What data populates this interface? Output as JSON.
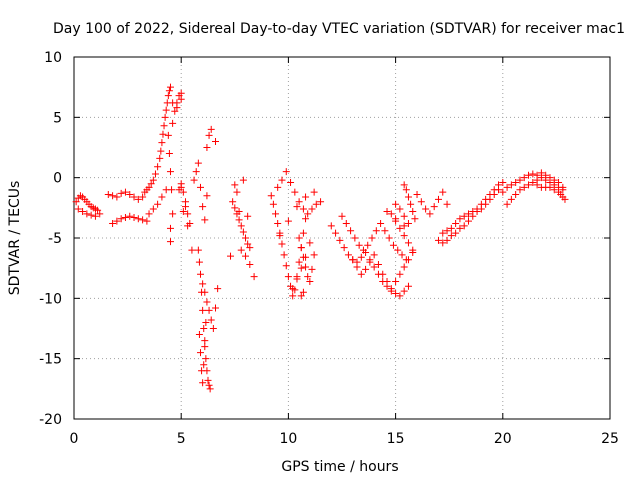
{
  "chart_data": {
    "type": "scatter",
    "title": "Day 100 of 2022, Sidereal Day-to-day VTEC variation (SDTVAR) for receiver mac1",
    "xlabel": "GPS time / hours",
    "ylabel": "SDTVAR / TECUs",
    "xlim": [
      0,
      25
    ],
    "ylim": [
      -20,
      10
    ],
    "xticks": [
      "0",
      "5",
      "10",
      "15",
      "20",
      "25"
    ],
    "yticks": [
      "10",
      "5",
      "0",
      "-5",
      "-10",
      "-15",
      "-20"
    ],
    "grid": true,
    "marker": "plus",
    "color": "#ff0000",
    "series": [
      {
        "name": "SDTVAR mac1",
        "x": [
          0.1,
          0.2,
          0.3,
          0.4,
          0.5,
          0.6,
          0.7,
          0.8,
          0.9,
          1.0,
          1.1,
          0.2,
          0.4,
          0.6,
          0.8,
          1.0,
          1.2,
          1.6,
          1.8,
          2.0,
          2.2,
          2.4,
          2.6,
          2.8,
          3.0,
          3.2,
          1.8,
          2.0,
          2.2,
          2.4,
          2.6,
          2.8,
          3.0,
          3.2,
          3.4,
          3.3,
          3.4,
          3.5,
          3.6,
          3.7,
          3.8,
          3.9,
          4.0,
          4.05,
          4.1,
          4.15,
          4.2,
          4.25,
          4.3,
          4.35,
          4.4,
          4.45,
          4.5,
          3.5,
          3.7,
          3.9,
          4.1,
          4.3,
          4.6,
          4.7,
          4.8,
          4.9,
          5.0,
          4.6,
          4.8,
          5.0,
          4.4,
          4.45,
          4.5,
          4.55,
          4.6,
          4.5,
          4.5,
          5.0,
          5.1,
          5.2,
          5.3,
          5.0,
          5.2,
          5.4,
          4.9,
          5.1,
          5.3,
          5.5,
          5.6,
          5.7,
          5.8,
          5.9,
          6.0,
          6.1,
          6.2,
          5.8,
          5.85,
          5.9,
          5.95,
          6.0,
          6.05,
          6.1,
          6.15,
          6.2,
          6.25,
          6.3,
          6.35,
          5.85,
          5.9,
          5.95,
          6.0,
          6.05,
          6.1,
          6.15,
          6.0,
          6.1,
          6.2,
          6.3,
          6.4,
          6.5,
          6.6,
          6.7,
          6.2,
          6.3,
          6.4,
          6.6,
          7.4,
          7.5,
          7.6,
          7.7,
          7.8,
          7.9,
          8.0,
          8.1,
          8.2,
          7.5,
          7.6,
          7.8,
          8.0,
          8.2,
          8.4,
          7.3,
          7.7,
          8.1,
          7.9,
          9.2,
          9.3,
          9.4,
          9.5,
          9.6,
          9.7,
          9.8,
          9.9,
          10.0,
          10.1,
          10.2,
          10.3,
          10.4,
          10.5,
          10.6,
          10.7,
          10.8,
          9.5,
          9.7,
          9.9,
          10.1,
          10.3,
          10.5,
          10.7,
          10.9,
          11.1,
          11.3,
          11.5,
          9.6,
          10.0,
          10.4,
          10.8,
          11.2,
          10.5,
          10.6,
          10.7,
          10.8,
          10.9,
          11.0,
          11.1,
          11.2,
          10.2,
          10.4,
          10.6,
          10.8,
          11.0,
          10.6,
          10.7,
          12.0,
          12.2,
          12.4,
          12.6,
          12.8,
          13.0,
          13.2,
          13.4,
          13.6,
          13.8,
          14.0,
          14.2,
          14.4,
          14.6,
          14.8,
          15.0,
          15.2,
          15.4,
          15.6,
          12.5,
          12.7,
          12.9,
          13.1,
          13.3,
          13.5,
          13.7,
          13.9,
          14.1,
          14.3,
          14.5,
          14.7,
          14.9,
          15.1,
          15.3,
          15.5,
          13.0,
          13.2,
          13.4,
          13.6,
          13.8,
          14.0,
          14.2,
          14.4,
          14.6,
          14.8,
          15.0,
          15.2,
          15.4,
          15.6,
          15.8,
          14.8,
          15.0,
          15.2,
          15.4,
          15.6,
          15.8,
          15.0,
          15.2,
          15.4,
          15.6,
          14.6,
          15.0,
          15.4,
          15.4,
          15.5,
          15.6,
          15.7,
          15.8,
          15.9,
          16.0,
          16.2,
          16.4,
          16.6,
          16.8,
          17.0,
          17.2,
          17.4,
          17.0,
          17.2,
          17.4,
          17.6,
          17.8,
          18.0,
          18.2,
          18.4,
          18.6,
          18.8,
          19.0,
          19.2,
          19.4,
          19.6,
          19.8,
          17.2,
          17.4,
          17.6,
          17.8,
          18.0,
          18.2,
          18.4,
          18.6,
          18.8,
          19.0,
          19.2,
          19.4,
          19.6,
          19.8,
          20.0,
          20.0,
          20.2,
          20.4,
          20.6,
          20.8,
          21.0,
          21.2,
          21.4,
          21.6,
          21.8,
          22.0,
          22.2,
          22.4,
          22.6,
          22.8,
          20.2,
          20.4,
          20.6,
          20.8,
          21.0,
          21.2,
          21.4,
          21.6,
          21.8,
          22.0,
          22.2,
          22.4,
          22.6,
          22.8,
          21.6,
          21.8,
          22.0,
          22.2,
          22.4,
          22.6,
          22.7,
          22.8,
          22.9
        ],
        "y": [
          -2.0,
          -1.7,
          -1.5,
          -1.6,
          -1.8,
          -2.0,
          -2.2,
          -2.4,
          -2.5,
          -2.6,
          -2.7,
          -2.6,
          -2.8,
          -3.0,
          -3.1,
          -3.2,
          -3.0,
          -1.4,
          -1.5,
          -1.6,
          -1.3,
          -1.2,
          -1.4,
          -1.6,
          -1.8,
          -1.6,
          -3.8,
          -3.6,
          -3.4,
          -3.3,
          -3.2,
          -3.3,
          -3.4,
          -3.5,
          -3.6,
          -1.2,
          -1.0,
          -0.8,
          -0.5,
          -0.2,
          0.3,
          0.9,
          1.6,
          2.2,
          2.9,
          3.6,
          4.3,
          5.0,
          5.6,
          6.2,
          6.8,
          7.2,
          7.5,
          -3.0,
          -2.6,
          -2.2,
          -1.6,
          -1.0,
          4.5,
          5.5,
          6.2,
          6.8,
          7.0,
          6.2,
          5.8,
          6.5,
          3.5,
          2.0,
          0.5,
          -1.0,
          -3.0,
          -4.2,
          -5.3,
          -0.5,
          -1.2,
          -2.0,
          -3.0,
          -0.8,
          -2.4,
          -3.8,
          -1.0,
          -2.8,
          -4.0,
          -6.0,
          -0.2,
          0.5,
          1.2,
          -0.8,
          -2.4,
          -3.5,
          -1.5,
          -6.0,
          -7.0,
          -8.0,
          -9.5,
          -11.0,
          -12.5,
          -14.0,
          -15.0,
          -16.0,
          -16.8,
          -17.2,
          -17.5,
          -13.0,
          -14.5,
          -16.0,
          -17.0,
          -15.5,
          -13.5,
          -12.0,
          -8.8,
          -9.5,
          -10.3,
          -11.0,
          -11.8,
          -12.5,
          -10.8,
          -9.2,
          2.5,
          3.5,
          4.0,
          3.0,
          -2.0,
          -2.5,
          -3.0,
          -3.5,
          -4.0,
          -4.5,
          -5.0,
          -5.5,
          -5.8,
          -0.6,
          -1.2,
          -6.0,
          -6.5,
          -7.2,
          -8.2,
          -6.5,
          -2.8,
          -3.2,
          -0.2,
          -1.5,
          -2.2,
          -3.0,
          -3.8,
          -4.6,
          -5.5,
          -6.4,
          -7.3,
          -8.2,
          -9.0,
          -9.8,
          -9.3,
          -8.2,
          -7.0,
          -5.8,
          -4.6,
          -3.4,
          -0.8,
          -0.2,
          0.5,
          -0.4,
          -1.2,
          -2.0,
          -2.6,
          -3.0,
          -2.6,
          -2.2,
          -2.0,
          -4.8,
          -3.6,
          -2.4,
          -1.6,
          -1.2,
          -5.0,
          -5.8,
          -6.6,
          -7.4,
          -8.2,
          -8.6,
          -7.6,
          -6.4,
          -9.2,
          -8.4,
          -7.5,
          -6.6,
          -5.4,
          -9.8,
          -9.5,
          -4.0,
          -4.6,
          -5.2,
          -5.8,
          -6.4,
          -6.8,
          -7.0,
          -6.6,
          -6.2,
          -6.8,
          -7.4,
          -8.0,
          -8.6,
          -9.0,
          -9.4,
          -9.6,
          -9.8,
          -9.4,
          -9.0,
          -3.2,
          -3.8,
          -4.4,
          -5.0,
          -5.6,
          -6.0,
          -5.6,
          -5.0,
          -4.4,
          -3.8,
          -4.4,
          -5.0,
          -5.6,
          -6.0,
          -6.4,
          -6.8,
          -6.8,
          -7.4,
          -8.0,
          -7.6,
          -7.0,
          -6.4,
          -7.2,
          -8.0,
          -8.6,
          -9.2,
          -8.6,
          -8.0,
          -7.4,
          -6.8,
          -6.2,
          -3.0,
          -3.6,
          -4.2,
          -4.8,
          -5.4,
          -6.0,
          -2.2,
          -2.6,
          -3.2,
          -3.8,
          -2.8,
          -3.4,
          -4.0,
          -0.6,
          -1.0,
          -1.6,
          -2.2,
          -2.8,
          -3.4,
          -1.4,
          -2.0,
          -2.6,
          -3.0,
          -2.4,
          -1.8,
          -1.2,
          -2.2,
          -5.2,
          -5.4,
          -5.2,
          -4.8,
          -4.6,
          -4.2,
          -4.0,
          -3.6,
          -3.2,
          -2.8,
          -2.6,
          -2.2,
          -1.8,
          -1.4,
          -1.0,
          -4.6,
          -4.4,
          -4.2,
          -3.8,
          -3.4,
          -3.2,
          -3.0,
          -2.8,
          -2.6,
          -2.2,
          -1.8,
          -1.4,
          -1.0,
          -0.6,
          -0.4,
          -1.2,
          -0.8,
          -0.6,
          -0.4,
          -0.2,
          0.0,
          0.2,
          0.3,
          0.2,
          0.4,
          0.2,
          0.0,
          -0.2,
          -0.4,
          -0.8,
          -2.2,
          -1.8,
          -1.4,
          -1.0,
          -0.8,
          -0.6,
          -0.4,
          -0.2,
          0.0,
          -0.2,
          -0.4,
          -0.6,
          -0.8,
          -1.0,
          -0.6,
          -0.8,
          -0.8,
          -0.8,
          -1.0,
          -1.2,
          -1.4,
          -1.6,
          -1.8
        ]
      }
    ]
  }
}
